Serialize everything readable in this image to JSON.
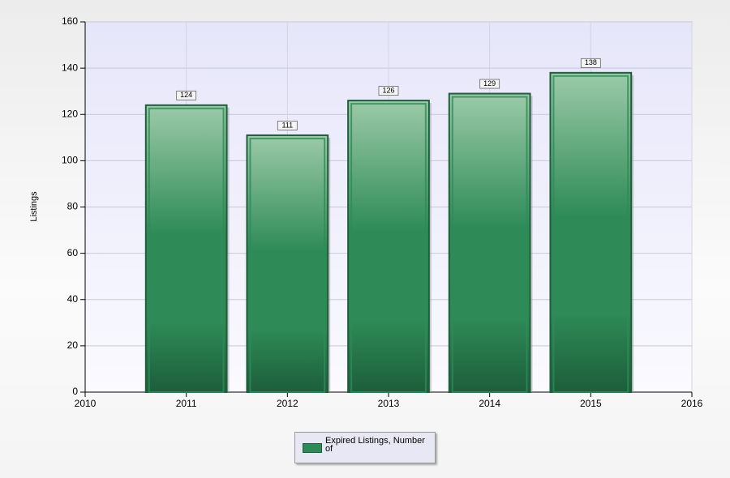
{
  "chart_data": {
    "type": "bar",
    "y_label": "Listings",
    "x": [
      2011,
      2012,
      2013,
      2014,
      2015
    ],
    "series": [
      {
        "name": "Expired Listings, Number of",
        "color": "#2e8b57",
        "values": [
          124,
          111,
          126,
          129,
          138
        ]
      }
    ],
    "xlim": [
      2010,
      2016
    ],
    "xticks": [
      2010,
      2011,
      2012,
      2013,
      2014,
      2015,
      2016
    ],
    "ylim": [
      0,
      160
    ],
    "yticks": [
      0,
      20,
      40,
      60,
      80,
      100,
      120,
      140,
      160
    ],
    "grid": true,
    "legend": "bottom"
  }
}
